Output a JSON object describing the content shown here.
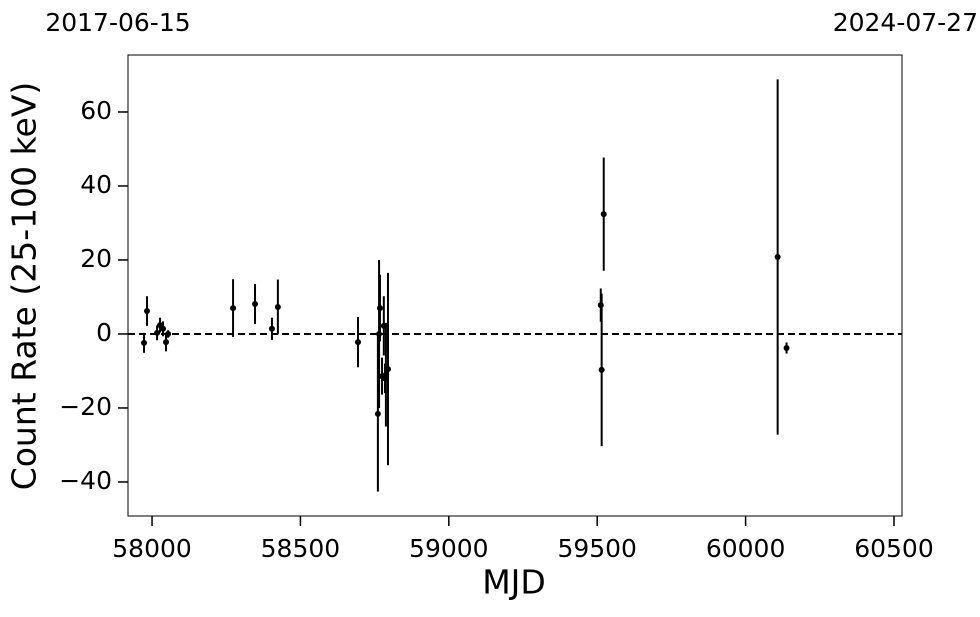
{
  "chart_data": {
    "type": "scatter",
    "xlabel": "MJD",
    "ylabel": "Count Rate (25-100 keV)",
    "date_range": [
      "2017-06-15",
      "2024-07-27"
    ],
    "x": [
      57973,
      57983,
      58017,
      58027,
      58037,
      58047,
      58054,
      58273,
      58347,
      58404,
      58424,
      58694,
      58761,
      58765,
      58768,
      58775,
      58781,
      58785,
      58788,
      58795,
      59512,
      59515,
      59522,
      60108,
      60138
    ],
    "values": [
      -2.4,
      6.2,
      0.3,
      2.4,
      1.4,
      -2.2,
      0,
      7,
      8.1,
      1.4,
      7.3,
      -2.2,
      -21.6,
      0,
      7,
      -11.4,
      2.2,
      -12,
      -11,
      -9.5,
      7.8,
      -9.7,
      32.4,
      20.8,
      -3.8
    ],
    "errors": [
      2.7,
      4,
      2,
      2,
      2,
      2.5,
      1,
      7.8,
      5.4,
      3,
      7.4,
      6.8,
      21,
      20,
      9,
      5,
      8,
      4,
      14,
      26,
      4.5,
      20.6,
      15.3,
      48,
      1.5
    ],
    "color": "#000000",
    "hline": 0,
    "xlim": [
      57919,
      60527
    ],
    "ylim": [
      -49.2,
      75.4
    ],
    "xticks": [
      58000,
      58500,
      59000,
      59500,
      60000,
      60500
    ],
    "yticks": [
      {
        "value": -40,
        "label": "−40"
      },
      {
        "value": -20,
        "label": "−20"
      },
      0,
      20,
      40,
      60
    ]
  }
}
